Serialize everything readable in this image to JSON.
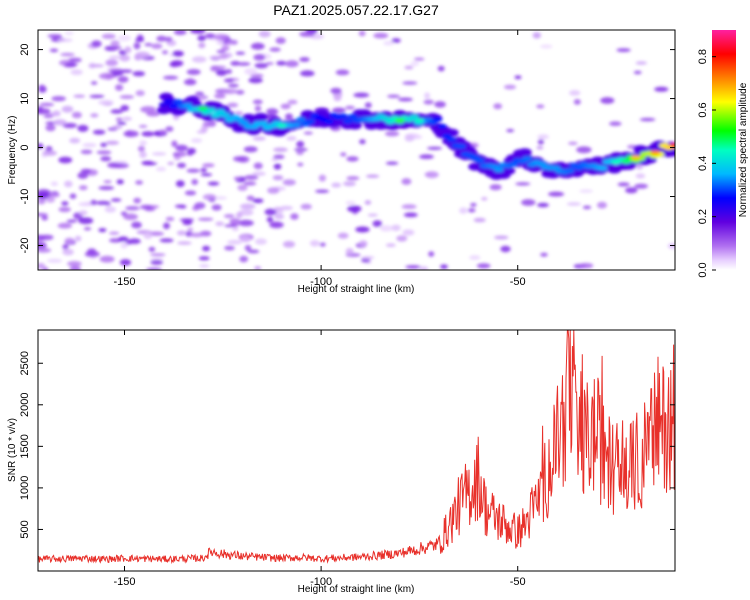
{
  "title": "PAZ1.2025.057.22.17.G27",
  "chart_data": [
    {
      "type": "heatmap",
      "xlabel": "Height of straight line (km)",
      "ylabel": "Frequency (Hz)",
      "xlim": [
        -172,
        -10
      ],
      "ylim": [
        -25,
        24
      ],
      "xticks": [
        -150,
        -100,
        -50
      ],
      "yticks": [
        20,
        10,
        0,
        -10,
        -20
      ],
      "colorbar": {
        "label": "Normalized spectral amplitude",
        "range": [
          0.0,
          0.9
        ],
        "ticks": [
          "0.0",
          "0.2",
          "0.4",
          "0.6",
          "0.8"
        ],
        "colormap": "rainbow (white → magenta → purple → blue → cyan → green → yellow → orange → red → pink)"
      },
      "ridge": {
        "description": "Main spectral-amplitude ridge (frequency vs. height)",
        "x": [
          -140,
          -130,
          -120,
          -110,
          -100,
          -90,
          -80,
          -75,
          -70,
          -65,
          -60,
          -55,
          -50,
          -45,
          -40,
          -35,
          -30,
          -25,
          -20,
          -15,
          -10
        ],
        "y": [
          9,
          8,
          5,
          4.5,
          6,
          6,
          5.5,
          5.5,
          5,
          0,
          -3,
          -5,
          -2,
          -3,
          -5,
          -4,
          -4,
          -3,
          -2,
          -1,
          0.5
        ],
        "peak_amplitude": [
          0.3,
          0.55,
          0.45,
          0.5,
          0.35,
          0.4,
          0.6,
          0.5,
          0.35,
          0.4,
          0.4,
          0.45,
          0.4,
          0.45,
          0.45,
          0.4,
          0.45,
          0.5,
          0.75,
          0.8,
          0.88
        ]
      }
    },
    {
      "type": "line",
      "xlabel": "Height of straight line (km)",
      "ylabel": "SNR (10 * v/v)",
      "xlim": [
        -172,
        -10
      ],
      "ylim": [
        0,
        2900
      ],
      "xticks": [
        -150,
        -100,
        -50
      ],
      "yticks": [
        500,
        1000,
        1500,
        2000,
        2500
      ],
      "color": "#e8302a",
      "series": [
        {
          "x": [
            -172,
            -165,
            -160,
            -155,
            -150,
            -145,
            -140,
            -135,
            -130,
            -128,
            -125,
            -120,
            -115,
            -110,
            -105,
            -100,
            -95,
            -90,
            -85,
            -80,
            -75,
            -70,
            -68,
            -65,
            -62,
            -60,
            -58,
            -55,
            -52,
            -50,
            -48,
            -45,
            -42,
            -40,
            -38,
            -36,
            -35,
            -33,
            -30,
            -28,
            -25,
            -22,
            -20,
            -18,
            -15,
            -12,
            -10
          ],
          "values": [
            140,
            145,
            150,
            140,
            150,
            145,
            140,
            145,
            150,
            230,
            200,
            175,
            160,
            150,
            160,
            145,
            155,
            165,
            185,
            210,
            260,
            320,
            480,
            750,
            950,
            1100,
            700,
            600,
            500,
            450,
            550,
            800,
            1200,
            1500,
            1800,
            2200,
            1400,
            1500,
            1600,
            1300,
            1200,
            1150,
            1250,
            1350,
            1600,
            1700,
            1750
          ]
        }
      ]
    }
  ]
}
